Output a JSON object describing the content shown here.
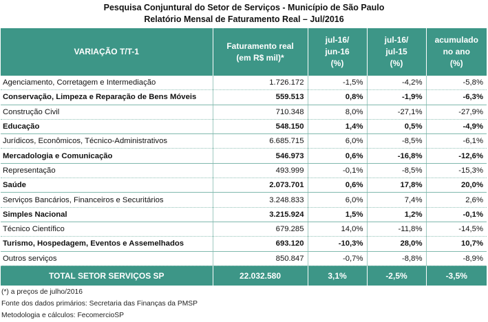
{
  "title_line1": "Pesquisa Conjuntural do Setor de Serviços - Município de São Paulo",
  "title_line2": "Relatório Mensal de Faturamento Real – Jul/2016",
  "headers": {
    "col0": "VARIAÇÃO T/T-1",
    "col1_a": "Faturamento real",
    "col1_b": "(em R$ mil)*",
    "col2_a": "jul-16/",
    "col2_b": "jun-16",
    "col2_c": "(%)",
    "col3_a": "jul-16/",
    "col3_b": "jul-15",
    "col3_c": "(%)",
    "col4_a": "acumulado",
    "col4_b": "no ano",
    "col4_c": "(%)"
  },
  "rows": [
    {
      "name": "Agenciamento, Corretagem e Intermediação",
      "fat": "1.726.172",
      "m": "-1,5%",
      "a": "-4,2%",
      "acc": "-5,8%",
      "bold": false
    },
    {
      "name": "Conservação, Limpeza e Reparação de Bens Móveis",
      "fat": "559.513",
      "m": "0,8%",
      "a": "-1,9%",
      "acc": "-6,3%",
      "bold": true
    },
    {
      "name": "Construção Civil",
      "fat": "710.348",
      "m": "8,0%",
      "a": "-27,1%",
      "acc": "-27,9%",
      "bold": false
    },
    {
      "name": "Educação",
      "fat": "548.150",
      "m": "1,4%",
      "a": "0,5%",
      "acc": "-4,9%",
      "bold": true
    },
    {
      "name": "Jurídicos, Econômicos, Técnico-Administrativos",
      "fat": "6.685.715",
      "m": "6,0%",
      "a": "-8,5%",
      "acc": "-6,1%",
      "bold": false
    },
    {
      "name": "Mercadologia  e Comunicação",
      "fat": "546.973",
      "m": "0,6%",
      "a": "-16,8%",
      "acc": "-12,6%",
      "bold": true
    },
    {
      "name": "Representação",
      "fat": "493.999",
      "m": "-0,1%",
      "a": "-8,5%",
      "acc": "-15,3%",
      "bold": false
    },
    {
      "name": "Saúde",
      "fat": "2.073.701",
      "m": "0,6%",
      "a": "17,8%",
      "acc": "20,0%",
      "bold": true
    },
    {
      "name": "Serviços Bancários, Financeiros e Securitários",
      "fat": "3.248.833",
      "m": "6,0%",
      "a": "7,4%",
      "acc": "2,6%",
      "bold": false
    },
    {
      "name": "Simples Nacional",
      "fat": "3.215.924",
      "m": "1,5%",
      "a": "1,2%",
      "acc": "-0,1%",
      "bold": true
    },
    {
      "name": "Técnico Científico",
      "fat": "679.285",
      "m": "14,0%",
      "a": "-11,8%",
      "acc": "-14,5%",
      "bold": false
    },
    {
      "name": "Turismo, Hospedagem, Eventos e Assemelhados",
      "fat": "693.120",
      "m": "-10,3%",
      "a": "28,0%",
      "acc": "10,7%",
      "bold": true
    },
    {
      "name": "Outros serviços",
      "fat": "850.847",
      "m": "-0,7%",
      "a": "-8,8%",
      "acc": "-8,9%",
      "bold": false
    }
  ],
  "total": {
    "name": "TOTAL SETOR SERVIÇOS SP",
    "fat": "22.032.580",
    "m": "3,1%",
    "a": "-2,5%",
    "acc": "-3,5%"
  },
  "notes": [
    "(*) a preços de julho/2016",
    "Fonte dos dados primários: Secretaria das Finanças da PMSP",
    "Metodologia e cálculos: FecomercioSP"
  ],
  "colors": {
    "header_bg": "#3d9687",
    "header_text": "#ffffff"
  }
}
